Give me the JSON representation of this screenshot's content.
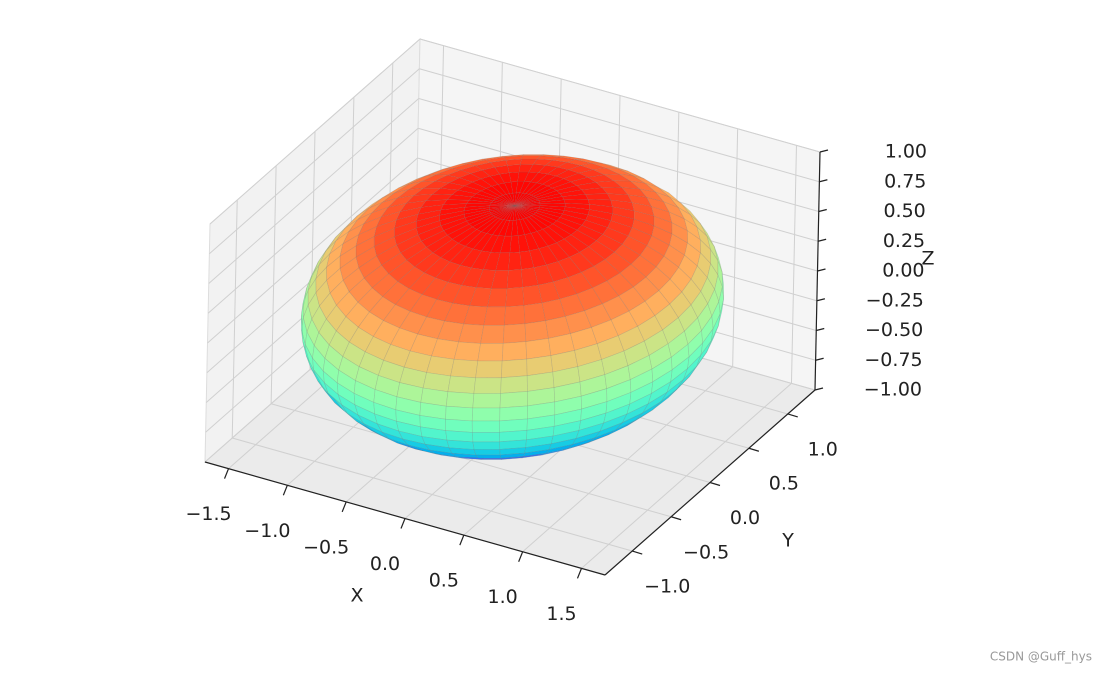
{
  "chart_data": {
    "type": "surface",
    "xlabel": "X",
    "ylabel": "Y",
    "zlabel": "Z",
    "radii": [
      1.5,
      1.5,
      0.85
    ],
    "colormap": "rainbow",
    "xlim": [
      -1.7,
      1.7
    ],
    "ylim": [
      -1.35,
      1.35
    ],
    "zlim": [
      -1,
      1
    ],
    "xticks": [
      {
        "value": -1.5,
        "label": "−1.5"
      },
      {
        "value": -1,
        "label": "−1.0"
      },
      {
        "value": -0.5,
        "label": "−0.5"
      },
      {
        "value": 0,
        "label": "0.0"
      },
      0.5,
      {
        "value": 1,
        "label": "1.0"
      },
      1.5
    ],
    "yticks": [
      {
        "value": -1,
        "label": "−1.0"
      },
      {
        "value": -0.5,
        "label": "−0.5"
      },
      {
        "value": 0,
        "label": "0.0"
      },
      0.5,
      {
        "value": 1,
        "label": "1.0"
      }
    ],
    "zticks": [
      {
        "value": -1,
        "label": "−1.00"
      },
      {
        "value": -0.75,
        "label": "−0.75"
      },
      {
        "value": -0.5,
        "label": "−0.50"
      },
      {
        "value": -0.25,
        "label": "−0.25"
      },
      {
        "value": 0,
        "label": "0.00"
      },
      0.25,
      {
        "value": 0.5,
        "label": "0.50"
      },
      0.75,
      {
        "value": 1,
        "label": "1.00"
      }
    ],
    "grid": true
  },
  "watermark": "CSDN @Guff_hys"
}
